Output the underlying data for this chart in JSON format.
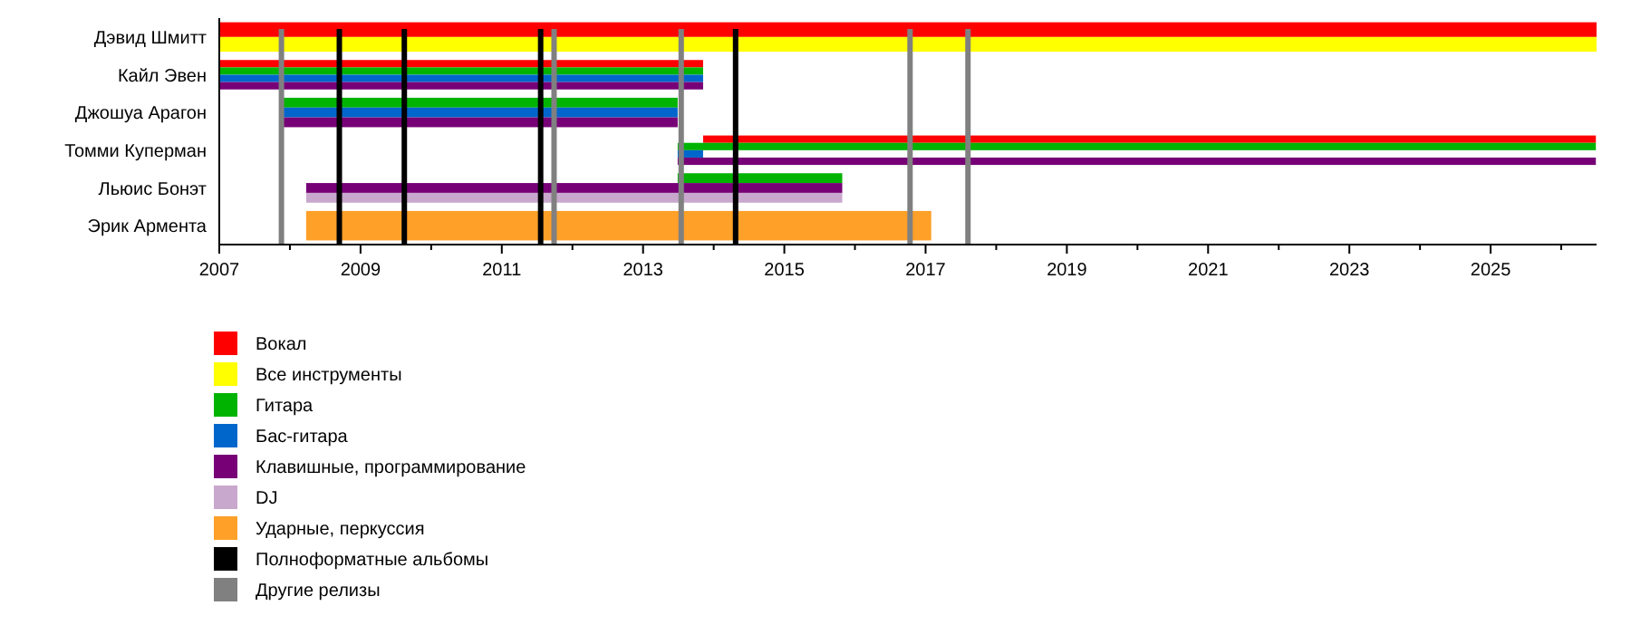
{
  "chart_data": {
    "type": "bar",
    "orientation": "horizontal",
    "categories": [
      "Дэвид Шмитт",
      "Кайл Эвен",
      "Джошуа Арагон",
      "Томми Куперман",
      "Льюис Бонэт",
      "Эрик Армента"
    ],
    "series": [
      {
        "name": "Вокал",
        "color": "#ff0000",
        "base": [
          2007,
          2007,
          null,
          2013.85,
          null,
          null
        ],
        "values": [
          19.5,
          6.85,
          null,
          12.64,
          null,
          null
        ]
      },
      {
        "name": "Все инструменты",
        "color": "#ffff00",
        "base": [
          2007,
          null,
          null,
          null,
          null,
          null
        ],
        "values": [
          19.5,
          null,
          null,
          null,
          null,
          null
        ]
      },
      {
        "name": "Гитара",
        "color": "#00b300",
        "base": [
          null,
          2007,
          2007.87,
          2013.49,
          2013.49,
          null
        ],
        "values": [
          null,
          6.85,
          5.62,
          13.0,
          2.33,
          null
        ]
      },
      {
        "name": "Бас-гитара",
        "color": "#0066cc",
        "base": [
          null,
          2007,
          2007.87,
          2013.49,
          null,
          null
        ],
        "values": [
          null,
          6.85,
          5.62,
          0.36,
          null,
          null
        ]
      },
      {
        "name": "Клавишные, программирование",
        "color": "#770077",
        "base": [
          null,
          2007,
          2007.87,
          2013.49,
          2008.23,
          null
        ],
        "values": [
          null,
          6.85,
          5.62,
          13.0,
          7.59,
          null
        ]
      },
      {
        "name": "DJ",
        "color": "#c8a8cc",
        "base": [
          null,
          null,
          null,
          null,
          2008.23,
          null
        ],
        "values": [
          null,
          null,
          null,
          null,
          7.59,
          null
        ]
      },
      {
        "name": "Ударные, перкуссия",
        "color": "#ffa028",
        "base": [
          null,
          null,
          null,
          null,
          null,
          2008.23
        ],
        "values": [
          null,
          null,
          null,
          null,
          null,
          8.85
        ]
      }
    ],
    "ref_lines": [
      {
        "axis": "x",
        "value": 2008.7,
        "label": "Полноформатные альбомы",
        "color": "#000000"
      },
      {
        "axis": "x",
        "value": 2009.62,
        "color": "#000000"
      },
      {
        "axis": "x",
        "value": 2011.55,
        "color": "#000000"
      },
      {
        "axis": "x",
        "value": 2014.31,
        "color": "#000000"
      },
      {
        "axis": "x",
        "value": 2007.88,
        "label": "Другие релизы",
        "color": "#808080"
      },
      {
        "axis": "x",
        "value": 2011.74,
        "color": "#808080"
      },
      {
        "axis": "x",
        "value": 2013.54,
        "color": "#808080"
      },
      {
        "axis": "x",
        "value": 2016.78,
        "color": "#808080"
      },
      {
        "axis": "x",
        "value": 2017.6,
        "color": "#808080"
      }
    ],
    "xlim": [
      2007,
      2026.5
    ],
    "xticks": [
      2007,
      {
        "value": 2008,
        "label": null
      },
      2009,
      {
        "value": 2010,
        "label": null
      },
      2011,
      {
        "value": 2012,
        "label": null
      },
      2013,
      {
        "value": 2014,
        "label": null
      },
      2015,
      {
        "value": 2016,
        "label": null
      },
      2017,
      {
        "value": 2018,
        "label": null
      },
      2019,
      {
        "value": 2020,
        "label": null
      },
      2021,
      {
        "value": 2022,
        "label": null
      },
      2023,
      {
        "value": 2024,
        "label": null
      },
      2025,
      {
        "value": 2026,
        "label": null
      }
    ],
    "grid": false,
    "legend": "bottom left"
  }
}
